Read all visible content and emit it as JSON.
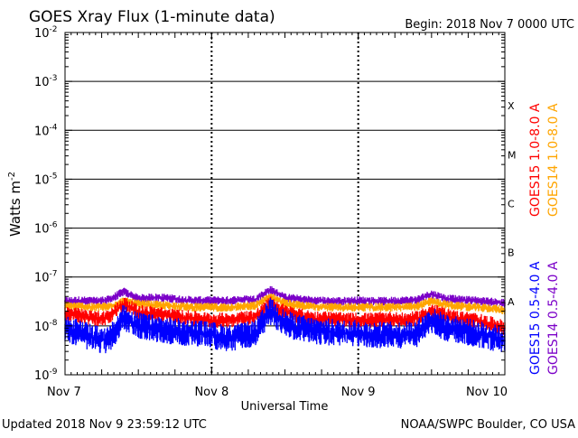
{
  "chart_data": {
    "type": "line",
    "title": "GOES Xray Flux (1-minute data)",
    "begin": "Begin:  2018 Nov 7 0000 UTC",
    "xlabel": "Universal Time",
    "ylabel": "Watts m",
    "ylabel_exponent": "-2",
    "y_scale": "log",
    "ylim": [
      1e-09,
      0.01
    ],
    "xlim": [
      0,
      3
    ],
    "grid": true,
    "x_ticks": [
      {
        "x": 0,
        "label": "Nov 7"
      },
      {
        "x": 1,
        "label": "Nov 8"
      },
      {
        "x": 2,
        "label": "Nov 9"
      },
      {
        "x": 3,
        "label": "Nov 10"
      }
    ],
    "y_ticks": [
      {
        "exp": -2,
        "label": "10",
        "sup": "-2"
      },
      {
        "exp": -3,
        "label": "10",
        "sup": "-3"
      },
      {
        "exp": -4,
        "label": "10",
        "sup": "-4"
      },
      {
        "exp": -5,
        "label": "10",
        "sup": "-5"
      },
      {
        "exp": -6,
        "label": "10",
        "sup": "-6"
      },
      {
        "exp": -7,
        "label": "10",
        "sup": "-7"
      },
      {
        "exp": -8,
        "label": "10",
        "sup": "-8"
      },
      {
        "exp": -9,
        "label": "10",
        "sup": "-9"
      }
    ],
    "flare_classes": [
      {
        "label": "X",
        "exp": -3.5
      },
      {
        "label": "M",
        "exp": -4.5
      },
      {
        "label": "C",
        "exp": -5.5
      },
      {
        "label": "B",
        "exp": -6.5
      },
      {
        "label": "A",
        "exp": -7.5
      }
    ],
    "legend_placement": "right",
    "legend": [
      {
        "name": "GOES15 1.0-8.0 A",
        "color": "#ff0000"
      },
      {
        "name": "GOES14 1.0-8.0 A",
        "color": "#ffa500"
      },
      {
        "name": "GOES15 0.5-4.0 A",
        "color": "#0000ff"
      },
      {
        "name": "GOES14 0.5-4.0 A",
        "color": "#7b00c8"
      }
    ],
    "series": [
      {
        "name": "GOES14 0.5-4.0 A",
        "color": "#7b00c8",
        "x": [
          0,
          0.1,
          0.2,
          0.3,
          0.4,
          0.5,
          0.6,
          0.7,
          0.8,
          0.9,
          1.0,
          1.1,
          1.2,
          1.3,
          1.4,
          1.5,
          1.6,
          1.7,
          1.8,
          1.9,
          2.0,
          2.1,
          2.2,
          2.3,
          2.4,
          2.5,
          2.6,
          2.7,
          2.8,
          2.9,
          3.0
        ],
        "y": [
          3.2e-08,
          3.3e-08,
          3.2e-08,
          3.4e-08,
          5e-08,
          3.6e-08,
          3.8e-08,
          3.7e-08,
          3.4e-08,
          3.3e-08,
          3.3e-08,
          3.3e-08,
          3.4e-08,
          3.5e-08,
          5.5e-08,
          3.8e-08,
          3.5e-08,
          3.3e-08,
          3.2e-08,
          3.2e-08,
          3.3e-08,
          3.2e-08,
          3.2e-08,
          3.3e-08,
          3.4e-08,
          4.5e-08,
          3.6e-08,
          3.4e-08,
          3.3e-08,
          3.1e-08,
          2.9e-08
        ]
      },
      {
        "name": "GOES14 1.0-8.0 A",
        "color": "#ffa500",
        "x": [
          0,
          0.1,
          0.2,
          0.3,
          0.4,
          0.5,
          0.6,
          0.7,
          0.8,
          0.9,
          1.0,
          1.1,
          1.2,
          1.3,
          1.4,
          1.5,
          1.6,
          1.7,
          1.8,
          1.9,
          2.0,
          2.1,
          2.2,
          2.3,
          2.4,
          2.5,
          2.6,
          2.7,
          2.8,
          2.9,
          3.0
        ],
        "y": [
          2.6e-08,
          2.5e-08,
          2.4e-08,
          2.5e-08,
          3.2e-08,
          2.8e-08,
          2.7e-08,
          2.6e-08,
          2.5e-08,
          2.4e-08,
          2.4e-08,
          2.4e-08,
          2.5e-08,
          2.6e-08,
          4e-08,
          2.9e-08,
          2.6e-08,
          2.5e-08,
          2.4e-08,
          2.4e-08,
          2.4e-08,
          2.4e-08,
          2.4e-08,
          2.4e-08,
          2.5e-08,
          3.2e-08,
          2.7e-08,
          2.5e-08,
          2.4e-08,
          2.3e-08,
          2.1e-08
        ]
      },
      {
        "name": "GOES15 1.0-8.0 A",
        "color": "#ff0000",
        "x": [
          0,
          0.1,
          0.2,
          0.3,
          0.4,
          0.5,
          0.6,
          0.7,
          0.8,
          0.9,
          1.0,
          1.1,
          1.2,
          1.3,
          1.4,
          1.5,
          1.6,
          1.7,
          1.8,
          1.9,
          2.0,
          2.1,
          2.2,
          2.3,
          2.4,
          2.5,
          2.6,
          2.7,
          2.8,
          2.9,
          3.0
        ],
        "y": [
          1.8e-08,
          1.6e-08,
          1.4e-08,
          1.5e-08,
          2.8e-08,
          1.9e-08,
          1.8e-08,
          1.6e-08,
          1.5e-08,
          1.4e-08,
          1.3e-08,
          1.3e-08,
          1.4e-08,
          1.5e-08,
          2.8e-08,
          1.9e-08,
          1.6e-08,
          1.4e-08,
          1.4e-08,
          1.3e-08,
          1.3e-08,
          1.3e-08,
          1.4e-08,
          1.3e-08,
          1.4e-08,
          2e-08,
          1.6e-08,
          1.4e-08,
          1.3e-08,
          1.1e-08,
          9e-09
        ]
      },
      {
        "name": "GOES15 0.5-4.0 A",
        "color": "#0000ff",
        "x": [
          0,
          0.1,
          0.2,
          0.3,
          0.4,
          0.5,
          0.6,
          0.7,
          0.8,
          0.9,
          1.0,
          1.1,
          1.2,
          1.3,
          1.4,
          1.5,
          1.6,
          1.7,
          1.8,
          1.9,
          2.0,
          2.1,
          2.2,
          2.3,
          2.4,
          2.5,
          2.6,
          2.7,
          2.8,
          2.9,
          3.0
        ],
        "y": [
          9e-09,
          7e-09,
          5.5e-09,
          5e-09,
          1.5e-08,
          1e-08,
          9e-09,
          8e-09,
          7.5e-09,
          7e-09,
          6.5e-09,
          5.5e-09,
          6e-09,
          7e-09,
          2e-08,
          1.1e-08,
          9e-09,
          8e-09,
          7.5e-09,
          7e-09,
          7e-09,
          6.5e-09,
          6.5e-09,
          6.5e-09,
          7e-09,
          1.3e-08,
          9e-09,
          8e-09,
          7e-09,
          6e-09,
          5e-09
        ]
      }
    ]
  },
  "footer": {
    "updated": "Updated 2018 Nov  9 23:59:12 UTC",
    "credit": "NOAA/SWPC Boulder, CO USA"
  }
}
